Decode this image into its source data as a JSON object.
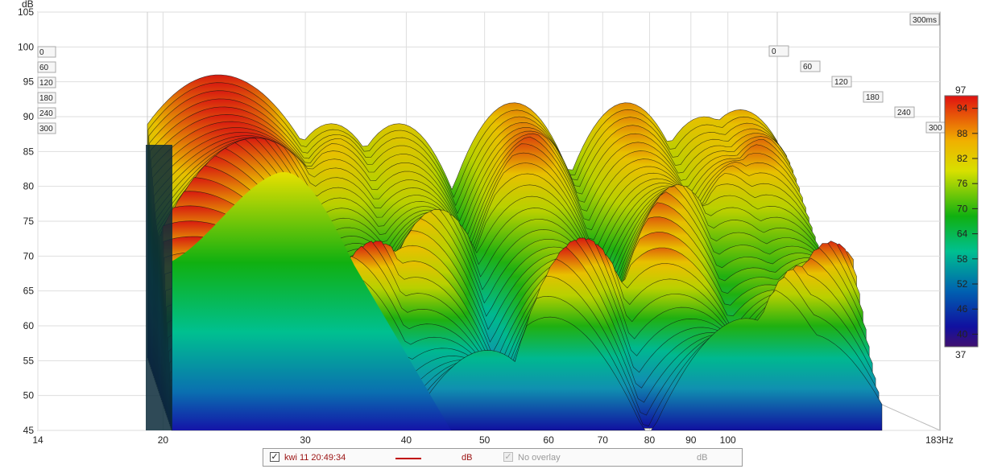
{
  "chart_data": {
    "type": "waterfall",
    "y_unit": "dB",
    "y_ticks": [
      "105",
      "100",
      "95",
      "90",
      "85",
      "80",
      "75",
      "70",
      "65",
      "60",
      "55",
      "50",
      "45"
    ],
    "ylim": [
      45,
      105
    ],
    "x_ticks": [
      "14",
      "20",
      "30",
      "40",
      "50",
      "60",
      "70",
      "80",
      "90",
      "100"
    ],
    "x_end_label": "183Hz",
    "xlim": [
      14,
      183
    ],
    "x_scale": "log",
    "time_ticks_left": [
      "0",
      "60",
      "120",
      "180",
      "240",
      "300"
    ],
    "time_ticks_right": [
      "0",
      "60",
      "120",
      "180",
      "240",
      "300"
    ],
    "time_label": "300ms",
    "colorbar": {
      "top": "97",
      "bottom": "37",
      "ticks": [
        "94",
        "88",
        "82",
        "76",
        "70",
        "64",
        "58",
        "52",
        "46",
        "40"
      ]
    },
    "peaks_front_slice": [
      {
        "freq_hz": 24,
        "level_db": 96
      },
      {
        "freq_hz": 32,
        "level_db": 89
      },
      {
        "freq_hz": 38,
        "level_db": 89
      },
      {
        "freq_hz": 51,
        "level_db": 92
      },
      {
        "freq_hz": 68,
        "level_db": 92
      },
      {
        "freq_hz": 83,
        "level_db": 90
      },
      {
        "freq_hz": 91,
        "level_db": 91
      }
    ],
    "colors": {
      "low": "#1a0a8c",
      "mid_low": "#00b89a",
      "mid": "#10b010",
      "mid_high": "#e8e000",
      "high": "#d01010"
    }
  },
  "legend": {
    "trace_checked_mark": "✓",
    "trace_name": "kwi 11 20:49:34",
    "trace_unit": "dB",
    "overlay_label": "No overlay",
    "overlay_unit": "dB",
    "trace_color": "#c00000"
  }
}
